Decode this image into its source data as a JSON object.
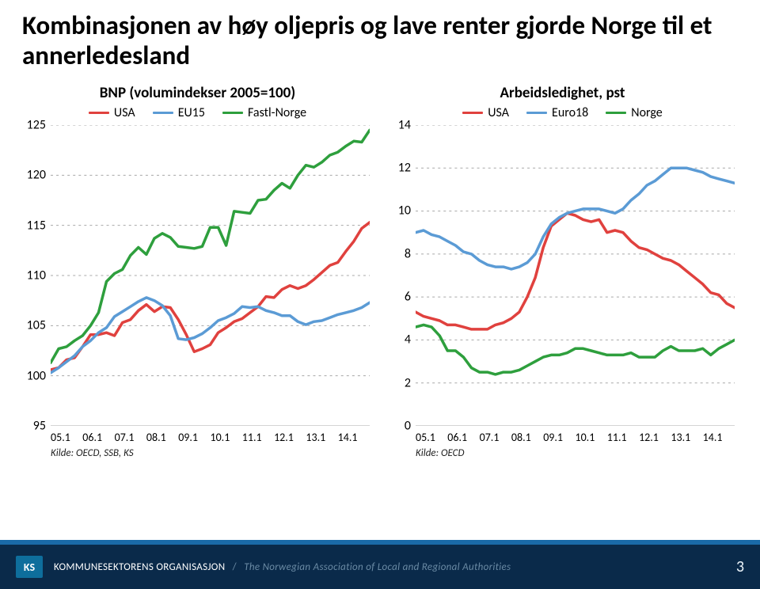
{
  "slide": {
    "title": "Kombinasjonen av høy oljepris og lave renter gjorde Norge til et annerledesland",
    "page_number": "3"
  },
  "footer": {
    "logo": "KS",
    "main": "KOMMUNESEKTORENS ORGANISASJON",
    "sub": "The Norwegian Association of Local and Regional Authorities"
  },
  "left_chart": {
    "type": "line",
    "title": "BNP (volumindekser 2005=100)",
    "legend": [
      {
        "label": "USA",
        "color": "#e0413e"
      },
      {
        "label": "EU15",
        "color": "#5b9bd5"
      },
      {
        "label": "Fastl-Norge",
        "color": "#2e9f3d"
      }
    ],
    "ylim": [
      95,
      125
    ],
    "ytick_step": 5,
    "xlabels": [
      "05.1",
      "06.1",
      "07.1",
      "08.1",
      "09.1",
      "10.1",
      "11.1",
      "12.1",
      "13.1",
      "14.1"
    ],
    "x_count": 41,
    "grid_color": "#a8a8a8",
    "axis_color": "#a8a8a8",
    "line_width": 3.5,
    "series": {
      "USA": [
        100.6,
        100.8,
        101.6,
        101.8,
        102.9,
        104.1,
        104.1,
        104.3,
        104.0,
        105.3,
        105.6,
        106.5,
        107.1,
        106.4,
        106.9,
        106.8,
        105.6,
        104.1,
        102.4,
        102.7,
        103.1,
        104.3,
        104.8,
        105.4,
        105.7,
        106.3,
        106.9,
        107.9,
        107.8,
        108.6,
        109.0,
        108.7,
        109.0,
        109.6,
        110.3,
        111.0,
        111.3,
        112.4,
        113.4,
        114.7,
        115.3
      ],
      "EU15": [
        100.3,
        100.8,
        101.4,
        102.0,
        102.9,
        103.5,
        104.3,
        104.8,
        105.9,
        106.4,
        106.9,
        107.4,
        107.8,
        107.5,
        107.0,
        106.0,
        103.7,
        103.6,
        103.8,
        104.2,
        104.8,
        105.5,
        105.8,
        106.2,
        106.9,
        106.8,
        106.9,
        106.5,
        106.3,
        106.0,
        106.0,
        105.4,
        105.1,
        105.4,
        105.5,
        105.8,
        106.1,
        106.3,
        106.5,
        106.8,
        107.3
      ],
      "Fastl-Norge": [
        101.3,
        102.7,
        102.9,
        103.5,
        104.0,
        105.0,
        106.3,
        109.4,
        110.2,
        110.6,
        112.0,
        112.8,
        112.1,
        113.7,
        114.2,
        113.8,
        112.9,
        112.8,
        112.7,
        112.9,
        114.8,
        114.8,
        113.0,
        116.4,
        116.3,
        116.2,
        117.5,
        117.6,
        118.5,
        119.2,
        118.7,
        120.0,
        121.0,
        120.8,
        121.3,
        122.0,
        122.3,
        122.9,
        123.4,
        123.3,
        124.5
      ]
    },
    "source": "Kilde: OECD, SSB, KS"
  },
  "right_chart": {
    "type": "line",
    "title": "Arbeidsledighet, pst",
    "legend": [
      {
        "label": "USA",
        "color": "#e0413e"
      },
      {
        "label": "Euro18",
        "color": "#5b9bd5"
      },
      {
        "label": "Norge",
        "color": "#2e9f3d"
      }
    ],
    "ylim": [
      0,
      14
    ],
    "ytick_step": 2,
    "xlabels": [
      "05.1",
      "06.1",
      "07.1",
      "08.1",
      "09.1",
      "10.1",
      "11.1",
      "12.1",
      "13.1",
      "14.1"
    ],
    "x_count": 41,
    "grid_color": "#a8a8a8",
    "axis_color": "#a8a8a8",
    "line_width": 3.5,
    "series": {
      "USA": [
        5.3,
        5.1,
        5.0,
        4.9,
        4.7,
        4.7,
        4.6,
        4.5,
        4.5,
        4.5,
        4.7,
        4.8,
        5.0,
        5.3,
        6.0,
        6.9,
        8.3,
        9.3,
        9.6,
        9.9,
        9.8,
        9.6,
        9.5,
        9.6,
        9.0,
        9.1,
        9.0,
        8.6,
        8.3,
        8.2,
        8.0,
        7.8,
        7.7,
        7.5,
        7.2,
        6.9,
        6.6,
        6.2,
        6.1,
        5.7,
        5.5
      ],
      "Euro18": [
        9.0,
        9.1,
        8.9,
        8.8,
        8.6,
        8.4,
        8.1,
        8.0,
        7.7,
        7.5,
        7.4,
        7.4,
        7.3,
        7.4,
        7.6,
        8.0,
        8.8,
        9.4,
        9.7,
        9.9,
        10.0,
        10.1,
        10.1,
        10.1,
        10.0,
        9.9,
        10.1,
        10.5,
        10.8,
        11.2,
        11.4,
        11.7,
        12.0,
        12.0,
        12.0,
        11.9,
        11.8,
        11.6,
        11.5,
        11.4,
        11.3
      ],
      "Norge": [
        4.6,
        4.7,
        4.6,
        4.2,
        3.5,
        3.5,
        3.2,
        2.7,
        2.5,
        2.5,
        2.4,
        2.5,
        2.5,
        2.6,
        2.8,
        3.0,
        3.2,
        3.3,
        3.3,
        3.4,
        3.6,
        3.6,
        3.5,
        3.4,
        3.3,
        3.3,
        3.3,
        3.4,
        3.2,
        3.2,
        3.2,
        3.5,
        3.7,
        3.5,
        3.5,
        3.5,
        3.6,
        3.3,
        3.6,
        3.8,
        4.0
      ]
    },
    "source": "Kilde: OECD"
  },
  "colors": {
    "footer_bg": "#0a2a4a",
    "footer_stripe": "#1a6aa8",
    "logo_bg": "#0e6e9c"
  }
}
